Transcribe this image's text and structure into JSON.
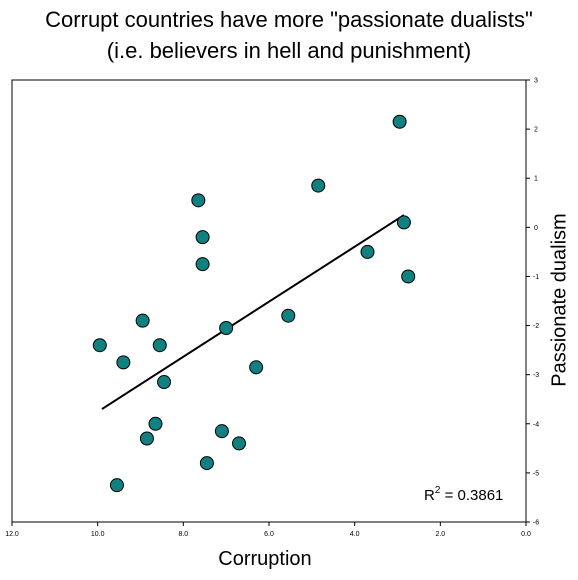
{
  "chart_data": {
    "type": "scatter",
    "title_lines": [
      "Corrupt countries have more \"passionate dualists\"",
      "(i.e. believers in hell and punishment)"
    ],
    "xlabel": "Corruption",
    "ylabel": "Passionate dualism",
    "x_axis": {
      "min": 0,
      "max": 12,
      "reversed": true,
      "ticks": [
        "12.0",
        "10.0",
        "8.0",
        "6.0",
        "4.0",
        "2.0",
        "0.0"
      ]
    },
    "y_axis": {
      "min": -6,
      "max": 3,
      "position": "right",
      "ticks": [
        "3",
        "2",
        "1",
        "0",
        "-1",
        "-2",
        "-3",
        "-4",
        "-5",
        "-6"
      ]
    },
    "grid": false,
    "marker_color": "#108080",
    "series": [
      {
        "points": [
          {
            "x": 9.95,
            "y": -2.4
          },
          {
            "x": 9.55,
            "y": -5.25
          },
          {
            "x": 9.4,
            "y": -2.75
          },
          {
            "x": 8.95,
            "y": -1.9
          },
          {
            "x": 8.85,
            "y": -4.3
          },
          {
            "x": 8.65,
            "y": -4.0
          },
          {
            "x": 8.55,
            "y": -2.4
          },
          {
            "x": 8.45,
            "y": -3.15
          },
          {
            "x": 7.65,
            "y": 0.55
          },
          {
            "x": 7.55,
            "y": -0.2
          },
          {
            "x": 7.55,
            "y": -0.75
          },
          {
            "x": 7.45,
            "y": -4.8
          },
          {
            "x": 7.1,
            "y": -4.15
          },
          {
            "x": 7.0,
            "y": -2.05
          },
          {
            "x": 6.7,
            "y": -4.4
          },
          {
            "x": 6.3,
            "y": -2.85
          },
          {
            "x": 5.55,
            "y": -1.8
          },
          {
            "x": 4.85,
            "y": 0.85
          },
          {
            "x": 3.7,
            "y": -0.5
          },
          {
            "x": 2.95,
            "y": 2.15
          },
          {
            "x": 2.85,
            "y": 0.1
          },
          {
            "x": 2.75,
            "y": -1.0
          }
        ]
      }
    ],
    "trendline": {
      "x1": 9.9,
      "y1": -3.7,
      "x2": 2.85,
      "y2": 0.25
    },
    "annotation": {
      "base": "R",
      "sup": "2",
      "rest": " = 0.3861"
    }
  }
}
